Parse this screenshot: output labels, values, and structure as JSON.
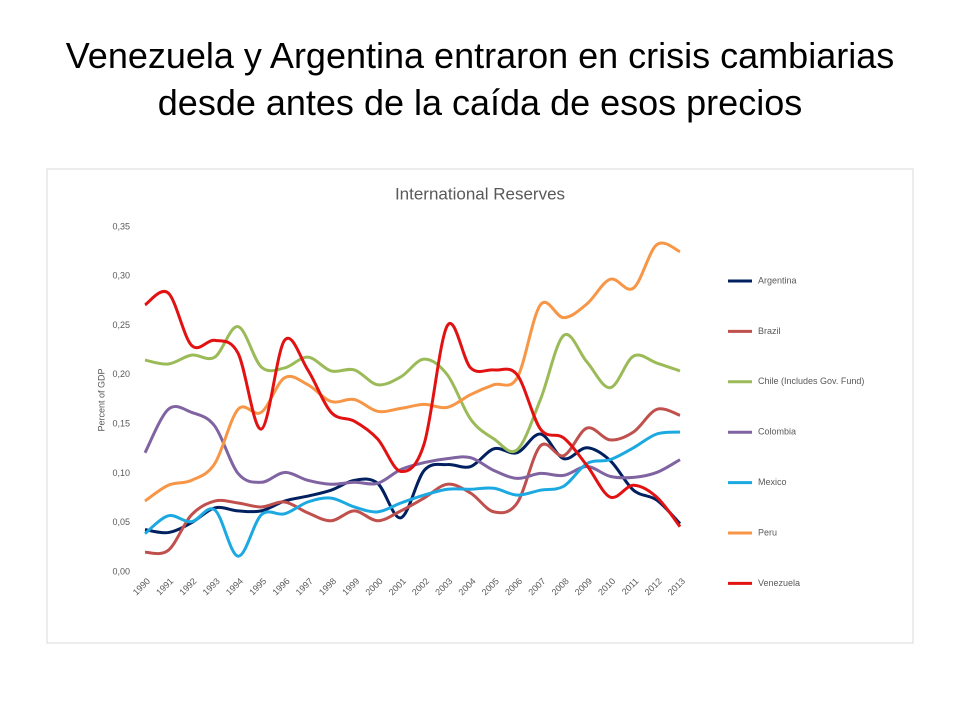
{
  "slide_title": [
    "Venezuela y Argentina entraron en crisis cambiarias",
    "desde antes de la caída de esos precios"
  ],
  "chart_data": {
    "type": "line",
    "title": "International Reserves",
    "y_label": "Percent of GDP",
    "categories": [
      "1990",
      "1991",
      "1992",
      "1993",
      "1994",
      "1995",
      "1996",
      "1997",
      "1998",
      "1999",
      "2000",
      "2001",
      "2002",
      "2003",
      "2004",
      "2005",
      "2006",
      "2007",
      "2008",
      "2009",
      "2010",
      "2011",
      "2012",
      "2013"
    ],
    "ylim": [
      0,
      0.35
    ],
    "yticks": [
      {
        "value": 0,
        "label": "0,00"
      },
      {
        "value": 0.05,
        "label": "0,05"
      },
      {
        "value": 0.1,
        "label": "0,10"
      },
      {
        "value": 0.15,
        "label": "0,15"
      },
      {
        "value": 0.2,
        "label": "0,20"
      },
      {
        "value": 0.25,
        "label": "0,25"
      },
      {
        "value": 0.3,
        "label": "0,30"
      },
      {
        "value": 0.35,
        "label": "0,35"
      }
    ],
    "grid": false,
    "smooth": true,
    "legend": "right",
    "series": [
      {
        "name": "Argentina",
        "color": "#002060",
        "values": [
          0.043,
          0.04,
          0.05,
          0.065,
          0.062,
          0.062,
          0.072,
          0.077,
          0.083,
          0.093,
          0.09,
          0.055,
          0.103,
          0.109,
          0.107,
          0.125,
          0.121,
          0.14,
          0.115,
          0.126,
          0.113,
          0.083,
          0.073,
          0.049
        ]
      },
      {
        "name": "Brazil",
        "color": "#c0504d",
        "values": [
          0.02,
          0.022,
          0.058,
          0.072,
          0.07,
          0.066,
          0.071,
          0.06,
          0.052,
          0.062,
          0.052,
          0.062,
          0.075,
          0.089,
          0.08,
          0.061,
          0.07,
          0.128,
          0.118,
          0.146,
          0.134,
          0.142,
          0.165,
          0.159
        ]
      },
      {
        "name": "Chile (Includes Gov. Fund)",
        "color": "#9bbb59",
        "values": [
          0.215,
          0.211,
          0.22,
          0.218,
          0.249,
          0.208,
          0.207,
          0.218,
          0.204,
          0.205,
          0.19,
          0.198,
          0.216,
          0.2,
          0.155,
          0.135,
          0.124,
          0.175,
          0.24,
          0.213,
          0.187,
          0.219,
          0.212,
          0.204
        ]
      },
      {
        "name": "Colombia",
        "color": "#8064a2",
        "values": [
          0.121,
          0.165,
          0.162,
          0.148,
          0.1,
          0.091,
          0.101,
          0.093,
          0.089,
          0.091,
          0.09,
          0.104,
          0.111,
          0.115,
          0.116,
          0.103,
          0.095,
          0.1,
          0.098,
          0.107,
          0.097,
          0.096,
          0.101,
          0.114
        ]
      },
      {
        "name": "Mexico",
        "color": "#1ca9e1",
        "values": [
          0.039,
          0.057,
          0.051,
          0.063,
          0.016,
          0.058,
          0.059,
          0.071,
          0.075,
          0.066,
          0.061,
          0.07,
          0.078,
          0.084,
          0.084,
          0.085,
          0.078,
          0.083,
          0.087,
          0.11,
          0.114,
          0.126,
          0.14,
          0.142
        ]
      },
      {
        "name": "Peru",
        "color": "#f79646",
        "values": [
          0.072,
          0.088,
          0.093,
          0.11,
          0.165,
          0.162,
          0.197,
          0.19,
          0.173,
          0.175,
          0.163,
          0.166,
          0.17,
          0.167,
          0.18,
          0.19,
          0.197,
          0.271,
          0.258,
          0.272,
          0.297,
          0.288,
          0.332,
          0.325
        ]
      },
      {
        "name": "Venezuela",
        "color": "#e21212",
        "values": [
          0.271,
          0.283,
          0.23,
          0.235,
          0.222,
          0.145,
          0.235,
          0.205,
          0.162,
          0.153,
          0.135,
          0.102,
          0.13,
          0.25,
          0.207,
          0.205,
          0.2,
          0.145,
          0.136,
          0.108,
          0.076,
          0.088,
          0.076,
          0.046
        ]
      }
    ]
  }
}
